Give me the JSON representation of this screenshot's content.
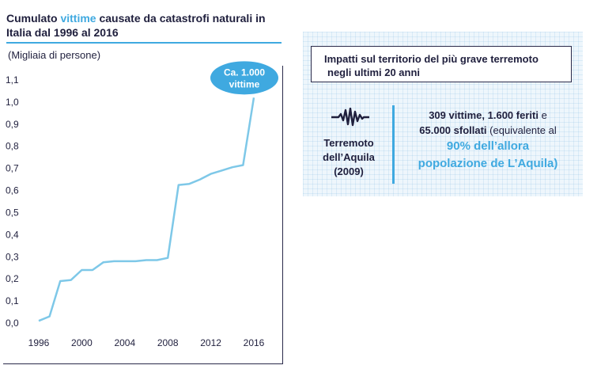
{
  "title": {
    "part1": "Cumulato ",
    "highlight": "vittime",
    "part2": " causate da catastrofi naturali in Italia dal 1996 al 2016"
  },
  "subtitle": "(Migliaia di persone)",
  "callout": {
    "line1": "Ca. 1.000",
    "line2": "vittime"
  },
  "colors": {
    "accent": "#3fa9e0",
    "line": "#7ec8e8",
    "text": "#1f1f3d"
  },
  "chart_data": {
    "type": "line",
    "title": "Cumulato vittime causate da catastrofi naturali in Italia dal 1996 al 2016",
    "ylabel": "(Migliaia di persone)",
    "xlabel": "",
    "xlim": [
      1996,
      2016
    ],
    "ylim": [
      0,
      1.1
    ],
    "x_ticks": [
      1996,
      2000,
      2004,
      2008,
      2012,
      2016
    ],
    "y_ticks": [
      "0,0",
      "0,1",
      "0,2",
      "0,3",
      "0,4",
      "0,5",
      "0,6",
      "0,7",
      "0,8",
      "0,9",
      "1,0",
      "1,1"
    ],
    "grid": false,
    "series": [
      {
        "name": "Cumulato vittime",
        "x": [
          1996,
          1997,
          1998,
          1999,
          2000,
          2001,
          2002,
          2003,
          2004,
          2005,
          2006,
          2007,
          2008,
          2009,
          2010,
          2011,
          2012,
          2013,
          2014,
          2015,
          2016
        ],
        "values": [
          0.01,
          0.03,
          0.19,
          0.195,
          0.24,
          0.24,
          0.275,
          0.28,
          0.28,
          0.28,
          0.285,
          0.285,
          0.295,
          0.625,
          0.63,
          0.65,
          0.675,
          0.69,
          0.705,
          0.715,
          1.02
        ]
      }
    ],
    "annotations": [
      "Ca. 1.000 vittime"
    ]
  },
  "impact": {
    "heading_line1": "Impatti sul territorio del più grave terremoto",
    "heading_line2": "negli ultimi 20 anni",
    "event_line1": "Terremoto",
    "event_line2": "dell’Aquila",
    "event_line3": "(2009)",
    "detail_bold1": "309 vittime, 1.600 feriti",
    "detail_after1": " e",
    "detail_bold2": "65.000 sfollati",
    "detail_after2": " (equivalente al",
    "detail_hl1": "90% dell’allora",
    "detail_hl2": "popolazione de L’Aquila)"
  }
}
